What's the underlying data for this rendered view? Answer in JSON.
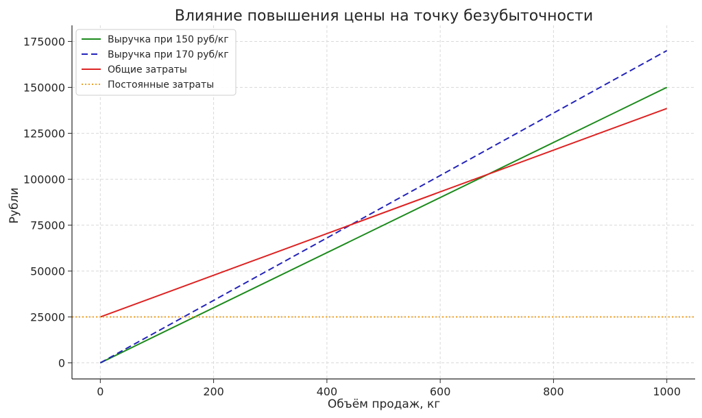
{
  "chart_data": {
    "type": "line",
    "title": "Влияние повышения цены на точку безубыточности",
    "xlabel": "Объём продаж, кг",
    "ylabel": "Рубли",
    "xlim": [
      -50,
      1050
    ],
    "ylim": [
      -8750,
      183750
    ],
    "xticks": [
      0,
      200,
      400,
      600,
      800,
      1000
    ],
    "yticks": [
      0,
      25000,
      50000,
      75000,
      100000,
      125000,
      150000,
      175000
    ],
    "grid": true,
    "legend_position": "top-left",
    "series": [
      {
        "name": "Выручка при 150 руб/кг",
        "color": "#1a8a1a",
        "style": "solid",
        "x": [
          0,
          1000
        ],
        "y": [
          0,
          150000
        ]
      },
      {
        "name": "Выручка при 170 руб/кг",
        "color": "#2222bb",
        "style": "dashed",
        "x": [
          0,
          1000
        ],
        "y": [
          0,
          170000
        ]
      },
      {
        "name": "Общие затраты",
        "color": "#dd2222",
        "style": "solid",
        "x": [
          0,
          1000
        ],
        "y": [
          25000,
          138500
        ]
      },
      {
        "name": "Постоянные затраты",
        "color": "#f0a020",
        "style": "dotted",
        "x": [
          -50,
          1050
        ],
        "y": [
          25000,
          25000
        ]
      }
    ]
  }
}
